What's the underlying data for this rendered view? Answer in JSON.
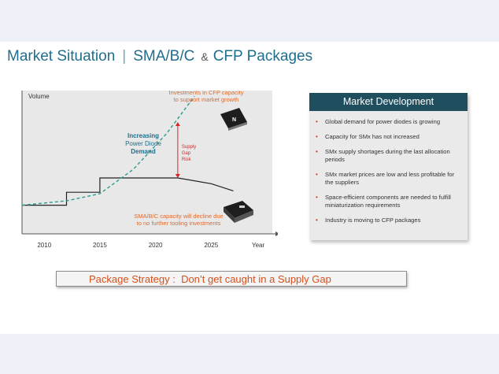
{
  "title": {
    "part1": "Market Situation",
    "separator": "|",
    "part2": "SMA/B/C",
    "amp": "&",
    "part3": "CFP Packages"
  },
  "chart_data": {
    "type": "line",
    "ylabel": "Volume",
    "xlabel": "Year",
    "x_ticks": [
      "2010",
      "2015",
      "2020",
      "2025"
    ],
    "series": [
      {
        "name": "",
        "style": "solid-step",
        "points": [
          [
            2008,
            20
          ],
          [
            2012,
            20
          ],
          [
            2012,
            29
          ],
          [
            2015,
            29
          ],
          [
            2015,
            39
          ],
          [
            2022,
            39
          ],
          [
            2025,
            35
          ],
          [
            2027,
            30
          ]
        ]
      },
      {
        "name": "",
        "style": "dashed",
        "points": [
          [
            2008,
            20
          ],
          [
            2012,
            23
          ],
          [
            2015,
            28
          ],
          [
            2018,
            45
          ],
          [
            2021,
            70
          ],
          [
            2023.5,
            96
          ]
        ]
      }
    ],
    "annotations": {
      "demand": "Increasing\nPower Diode\nDemand",
      "cfp_invest": "Investments in CFP capacity\nto support market growth",
      "gap": "Supply\nGap\nRisk",
      "decline": "SMA/B/C capacity will decline due\nto no further tooling investments"
    },
    "colors": {
      "step": "#222222",
      "dashed": "#2a9d8f",
      "gap": "#d62828",
      "orange": "#e06a2c",
      "teal": "#1f6e8c"
    }
  },
  "panel": {
    "header": "Market Development",
    "items": [
      "Global demand for power diodes is growing",
      "Capacity for SMx has not increased",
      "SMx supply shortages during the last allocation periods",
      "SMx market prices are low and less profitable for the suppliers",
      "Space-efficient components are needed to fulfill miniaturization requirements",
      "Industry is moving to CFP packages"
    ]
  },
  "strategy": {
    "text": "Package Strategy :  Don’t get caught in a Supply Gap"
  }
}
